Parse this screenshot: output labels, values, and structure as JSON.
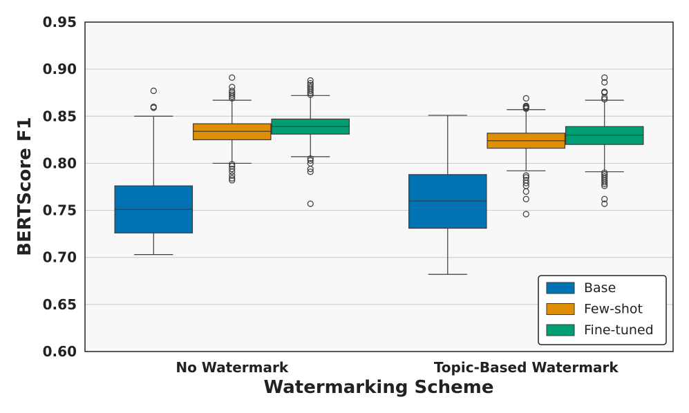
{
  "chart_data": {
    "type": "box",
    "title": "",
    "xlabel": "Watermarking Scheme",
    "ylabel": "BERTScore F1",
    "ylim": [
      0.6,
      0.95
    ],
    "yticks": [
      "0.60",
      "0.65",
      "0.70",
      "0.75",
      "0.80",
      "0.85",
      "0.90",
      "0.95"
    ],
    "grid": "horizontal",
    "legend_position": "bottom-right",
    "categories": [
      "No Watermark",
      "Topic-Based Watermark"
    ],
    "series": [
      {
        "name": "Base",
        "color": "#0173b2",
        "boxes": [
          {
            "whislo": 0.703,
            "q1": 0.726,
            "med": 0.751,
            "q3": 0.776,
            "whishi": 0.85,
            "fliers": [
              0.859,
              0.86,
              0.877
            ]
          },
          {
            "whislo": 0.682,
            "q1": 0.731,
            "med": 0.76,
            "q3": 0.788,
            "whishi": 0.851,
            "fliers": []
          }
        ]
      },
      {
        "name": "Few-shot",
        "color": "#de8f05",
        "boxes": [
          {
            "whislo": 0.8,
            "q1": 0.825,
            "med": 0.834,
            "q3": 0.842,
            "whishi": 0.867,
            "fliers": [
              0.782,
              0.784,
              0.787,
              0.791,
              0.794,
              0.797,
              0.799,
              0.869,
              0.871,
              0.873,
              0.875,
              0.877,
              0.881,
              0.891
            ]
          },
          {
            "whislo": 0.792,
            "q1": 0.816,
            "med": 0.824,
            "q3": 0.832,
            "whishi": 0.857,
            "fliers": [
              0.746,
              0.762,
              0.77,
              0.776,
              0.779,
              0.782,
              0.785,
              0.787,
              0.858,
              0.859,
              0.86,
              0.861,
              0.869
            ]
          }
        ]
      },
      {
        "name": "Fine-tuned",
        "color": "#029e73",
        "boxes": [
          {
            "whislo": 0.807,
            "q1": 0.831,
            "med": 0.839,
            "q3": 0.847,
            "whishi": 0.872,
            "fliers": [
              0.757,
              0.791,
              0.794,
              0.8,
              0.803,
              0.805,
              0.873,
              0.875,
              0.877,
              0.879,
              0.881,
              0.883,
              0.885,
              0.888
            ]
          },
          {
            "whislo": 0.791,
            "q1": 0.82,
            "med": 0.83,
            "q3": 0.839,
            "whishi": 0.867,
            "fliers": [
              0.757,
              0.762,
              0.776,
              0.778,
              0.78,
              0.782,
              0.784,
              0.786,
              0.788,
              0.79,
              0.868,
              0.87,
              0.875,
              0.876,
              0.886,
              0.891
            ]
          }
        ]
      }
    ]
  }
}
